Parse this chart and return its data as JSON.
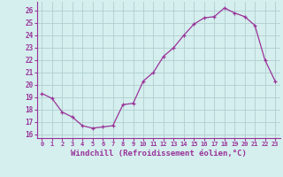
{
  "x": [
    0,
    1,
    2,
    3,
    4,
    5,
    6,
    7,
    8,
    9,
    10,
    11,
    12,
    13,
    14,
    15,
    16,
    17,
    18,
    19,
    20,
    21,
    22,
    23
  ],
  "y": [
    19.3,
    18.9,
    17.8,
    17.4,
    16.7,
    16.5,
    16.6,
    16.7,
    18.4,
    18.5,
    20.3,
    21.0,
    22.3,
    23.0,
    24.0,
    24.9,
    25.4,
    25.5,
    26.2,
    25.8,
    25.5,
    24.8,
    22.0,
    20.3
  ],
  "line_color": "#993399",
  "marker": "+",
  "marker_size": 3,
  "xlabel": "Windchill (Refroidissement éolien,°C)",
  "xlabel_fontsize": 6.5,
  "xtick_labels": [
    "0",
    "1",
    "2",
    "3",
    "4",
    "5",
    "6",
    "7",
    "8",
    "9",
    "10",
    "11",
    "12",
    "13",
    "14",
    "15",
    "16",
    "17",
    "18",
    "19",
    "20",
    "21",
    "22",
    "23"
  ],
  "ytick_labels": [
    "16",
    "17",
    "18",
    "19",
    "20",
    "21",
    "22",
    "23",
    "24",
    "25",
    "26"
  ],
  "ylim": [
    15.7,
    26.7
  ],
  "xlim": [
    -0.5,
    23.5
  ],
  "bg_color": "#d5eeee",
  "grid_color": "#b0cece",
  "tick_color": "#993399",
  "label_color": "#993399"
}
